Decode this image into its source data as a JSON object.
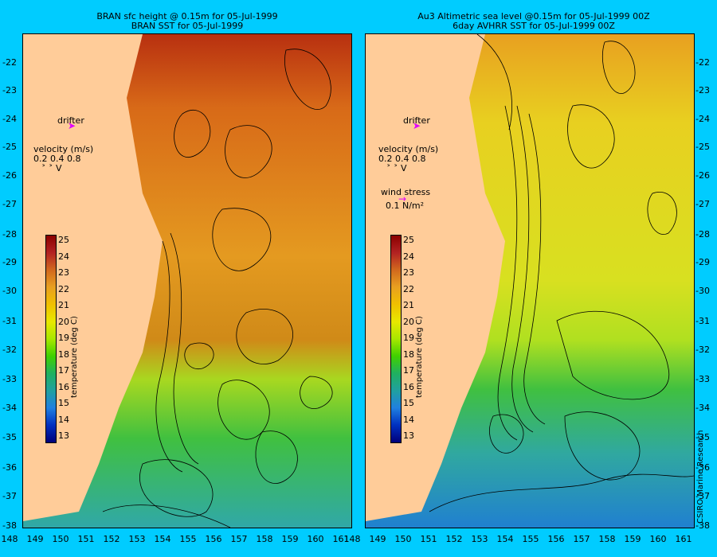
{
  "left_panel": {
    "title_line1": "BRAN sfc height @ 0.15m for 05-Jul-1999",
    "title_line2": "BRAN SST for 05-Jul-1999",
    "drifter_label": "drifter",
    "velocity_label": "velocity (m/s)",
    "velocity_scale": "0.2 0.4 0.8",
    "velocity_arrows": "˃ ˃ V"
  },
  "right_panel": {
    "title_line1": "Au3 Altimetric sea level  @0.15m  for 05-Jul-1999 00Z",
    "title_line2": "6day AVHRR SST for 05-Jul-1999 00Z",
    "drifter_label": "drifter",
    "velocity_label": "velocity (m/s)",
    "velocity_scale": "0.2 0.4 0.8",
    "velocity_arrows": "˃ ˃ V",
    "wind_label": "wind stress",
    "wind_value": "0.1 N/m²"
  },
  "colorbar": {
    "title": "temperature (deg C)",
    "ticks": [
      "25",
      "24",
      "23",
      "22",
      "21",
      "20",
      "19",
      "18",
      "17",
      "16",
      "15",
      "14",
      "13"
    ],
    "colors": [
      "#8b0000",
      "#b22222",
      "#d2691e",
      "#e8a020",
      "#f0c000",
      "#e8e800",
      "#a8e800",
      "#40d000",
      "#20b060",
      "#20a0a0",
      "#2080e0",
      "#0030c0",
      "#00007a"
    ]
  },
  "axes": {
    "lat_ticks": [
      "-22",
      "-23",
      "-24",
      "-25",
      "-26",
      "-27",
      "-28",
      "-29",
      "-30",
      "-31",
      "-32",
      "-33",
      "-34",
      "-35",
      "-36",
      "-37",
      "-38"
    ],
    "lon_ticks": [
      "148",
      "149",
      "150",
      "151",
      "152",
      "153",
      "154",
      "155",
      "156",
      "157",
      "158",
      "159",
      "160",
      "161"
    ]
  },
  "credit": "CSIRO Marine Research",
  "colors": {
    "background": "#00ccff",
    "land": "#ffcc99",
    "drifter": "#e000ff"
  }
}
